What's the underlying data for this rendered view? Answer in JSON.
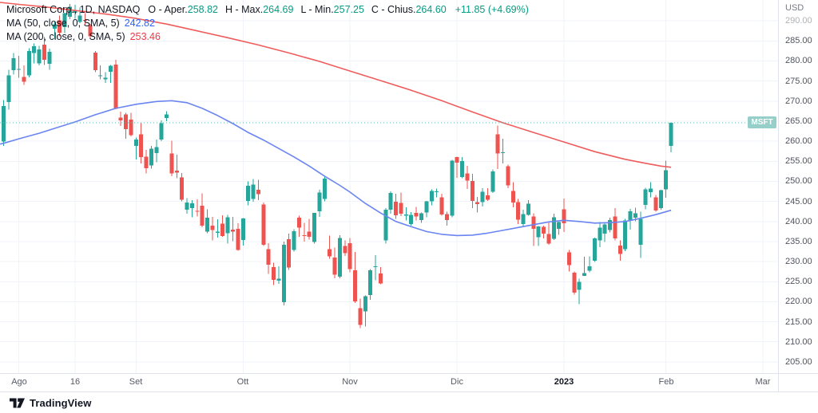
{
  "legend": {
    "title": "Microsoft Corp., 1D, NASDAQ",
    "ohlc": [
      {
        "label": "O - Aper.",
        "value": "258.82"
      },
      {
        "label": "H - Max.",
        "value": "264.69"
      },
      {
        "label": "L - Min.",
        "value": "257.25"
      },
      {
        "label": "C - Chius.",
        "value": "264.60"
      }
    ],
    "change": "+11.85 (+4.69%)",
    "ma50": {
      "label": "MA (50, close, 0, SMA, 5)",
      "value": "242.82"
    },
    "ma200": {
      "label": "MA (200, close, 0, SMA, 5)",
      "value": "253.46"
    }
  },
  "price_axis": {
    "currency": "USD"
  },
  "footer": {
    "brand": "TradingView"
  },
  "chart_data": {
    "type": "candlestick",
    "title": "Microsoft Corp. (MSFT) 1D candlestick chart with SMA 50 and SMA 200",
    "symbol_label": "MSFT",
    "xlim": [
      -0.7,
      152
    ],
    "ylim": [
      202.2,
      295.2
    ],
    "y_ticks": [
      290,
      285,
      280,
      275,
      270,
      265,
      260,
      255,
      250,
      245,
      240,
      235,
      230,
      225,
      220,
      215,
      210,
      205
    ],
    "x_ticks": [
      {
        "label": "Ago",
        "i": 3,
        "bold": false
      },
      {
        "label": "16",
        "i": 14,
        "bold": false
      },
      {
        "label": "Set",
        "i": 26,
        "bold": false
      },
      {
        "label": "Ott",
        "i": 47,
        "bold": false
      },
      {
        "label": "Nov",
        "i": 68,
        "bold": false
      },
      {
        "label": "Dic",
        "i": 89,
        "bold": false
      },
      {
        "label": "2023",
        "i": 110,
        "bold": true
      },
      {
        "label": "Feb",
        "i": 130,
        "bold": false
      },
      {
        "label": "Mar",
        "i": 149,
        "bold": false
      }
    ],
    "price_line": {
      "value": 264.6,
      "x_end": 934
    },
    "colors": {
      "up": "#26a69a",
      "down": "#ef5350",
      "ma50": "#6a85f1",
      "ma200": "#f05c5c",
      "grid": "#f0f3fa",
      "price_line": "#59b3aa",
      "badge_bg": "#96cfc9",
      "legend_up": "#089981",
      "legend_ma50": "#2962ff",
      "legend_ma200": "#f23645"
    },
    "candles": [
      [
        259.9,
        270.3,
        258.8,
        268.74
      ],
      [
        269.75,
        277.84,
        267.87,
        276.41
      ],
      [
        277.7,
        282.0,
        276.63,
        280.74
      ],
      [
        277.82,
        281.3,
        275.84,
        278.01
      ],
      [
        276.0,
        278.86,
        274.0,
        274.82
      ],
      [
        276.4,
        283.13,
        275.93,
        282.47
      ],
      [
        282.0,
        284.35,
        279.38,
        283.65
      ],
      [
        279.43,
        283.79,
        278.91,
        282.91
      ],
      [
        284.04,
        285.92,
        279.0,
        280.32
      ],
      [
        279.3,
        283.08,
        277.85,
        282.3
      ],
      [
        288.09,
        289.81,
        285.42,
        289.16
      ],
      [
        290.17,
        291.33,
        286.11,
        287.02
      ],
      [
        288.48,
        292.03,
        286.94,
        291.91
      ],
      [
        291.0,
        294.18,
        290.42,
        293.47
      ],
      [
        291.99,
        294.04,
        290.52,
        292.71
      ],
      [
        289.74,
        293.35,
        289.47,
        291.32
      ],
      [
        290.19,
        291.91,
        289.08,
        290.17
      ],
      [
        288.9,
        289.25,
        285.56,
        286.15
      ],
      [
        282.08,
        282.46,
        277.22,
        277.75
      ],
      [
        276.44,
        278.86,
        275.4,
        276.44
      ],
      [
        275.41,
        277.23,
        274.52,
        275.79
      ],
      [
        277.33,
        279.02,
        274.52,
        278.85
      ],
      [
        279.08,
        280.34,
        267.98,
        268.09
      ],
      [
        265.85,
        267.4,
        263.85,
        265.23
      ],
      [
        266.67,
        267.05,
        260.66,
        262.97
      ],
      [
        265.39,
        267.11,
        261.21,
        261.47
      ],
      [
        258.87,
        260.89,
        255.41,
        260.4
      ],
      [
        261.7,
        264.74,
        254.47,
        256.06
      ],
      [
        256.2,
        257.83,
        251.94,
        253.25
      ],
      [
        254.0,
        258.82,
        253.21,
        258.09
      ],
      [
        257.05,
        260.43,
        254.79,
        258.52
      ],
      [
        260.38,
        265.23,
        260.02,
        264.46
      ],
      [
        265.79,
        267.45,
        265.01,
        266.65
      ],
      [
        256.91,
        260.16,
        251.29,
        251.99
      ],
      [
        252.64,
        256.65,
        250.82,
        252.22
      ],
      [
        251.0,
        252.06,
        244.98,
        245.38
      ],
      [
        242.89,
        245.78,
        241.97,
        244.74
      ],
      [
        243.3,
        245.36,
        241.06,
        244.52
      ],
      [
        242.61,
        245.54,
        241.27,
        242.45
      ],
      [
        243.9,
        246.98,
        238.57,
        238.95
      ],
      [
        237.5,
        243.07,
        237.04,
        240.98
      ],
      [
        239.01,
        241.13,
        235.31,
        237.92
      ],
      [
        237.2,
        240.53,
        235.96,
        237.45
      ],
      [
        239.41,
        241.55,
        236.17,
        236.41
      ],
      [
        237.03,
        241.62,
        234.48,
        241.07
      ],
      [
        238.0,
        241.13,
        235.13,
        237.5
      ],
      [
        238.21,
        239.58,
        232.73,
        232.9
      ],
      [
        235.41,
        240.88,
        234.02,
        240.74
      ],
      [
        245.1,
        250.0,
        244.04,
        248.88
      ],
      [
        245.64,
        250.6,
        244.92,
        249.2
      ],
      [
        247.9,
        250.34,
        245.31,
        246.79
      ],
      [
        244.21,
        244.69,
        233.94,
        234.24
      ],
      [
        233.06,
        234.56,
        226.99,
        229.25
      ],
      [
        228.63,
        229.75,
        224.11,
        225.41
      ],
      [
        225.23,
        228.87,
        224.42,
        225.75
      ],
      [
        219.85,
        235.03,
        219.13,
        234.24
      ],
      [
        235.6,
        237.0,
        227.97,
        228.56
      ],
      [
        232.9,
        238.04,
        232.51,
        237.53
      ],
      [
        240.99,
        241.49,
        236.16,
        238.5
      ],
      [
        236.6,
        239.66,
        235.0,
        236.48
      ],
      [
        237.47,
        240.63,
        235.52,
        236.15
      ],
      [
        234.9,
        242.19,
        234.45,
        242.12
      ],
      [
        242.5,
        247.9,
        241.19,
        247.25
      ],
      [
        245.63,
        251.04,
        244.98,
        250.66
      ],
      [
        233.11,
        236.5,
        230.69,
        231.32
      ],
      [
        231.04,
        233.53,
        225.81,
        226.75
      ],
      [
        226.24,
        236.6,
        225.89,
        235.87
      ],
      [
        233.9,
        235.26,
        231.38,
        232.13
      ],
      [
        234.6,
        235.88,
        227.33,
        228.17
      ],
      [
        227.8,
        232.43,
        219.67,
        220.1
      ],
      [
        218.42,
        220.81,
        213.43,
        214.25
      ],
      [
        217.55,
        221.59,
        213.8,
        221.39
      ],
      [
        221.64,
        228.18,
        220.52,
        227.87
      ],
      [
        228.6,
        231.59,
        225.32,
        228.87
      ],
      [
        227.0,
        228.66,
        224.33,
        224.51
      ],
      [
        235.31,
        243.32,
        234.51,
        242.98
      ],
      [
        242.9,
        247.53,
        241.92,
        247.11
      ],
      [
        244.96,
        246.88,
        240.65,
        241.55
      ],
      [
        244.61,
        247.19,
        241.3,
        241.97
      ],
      [
        241.5,
        243.53,
        240.26,
        241.73
      ],
      [
        239.34,
        242.3,
        238.93,
        241.68
      ],
      [
        242.1,
        243.59,
        240.21,
        241.22
      ],
      [
        240.37,
        242.23,
        239.61,
        242.05
      ],
      [
        242.27,
        245.16,
        241.08,
        245.03
      ],
      [
        245.04,
        248.03,
        244.04,
        247.58
      ],
      [
        247.45,
        248.19,
        246.06,
        247.49
      ],
      [
        246.0,
        246.93,
        241.4,
        241.76
      ],
      [
        241.8,
        242.42,
        238.92,
        240.33
      ],
      [
        241.42,
        255.33,
        241.01,
        255.14
      ],
      [
        256.1,
        256.12,
        250.92,
        254.69
      ],
      [
        251.11,
        256.06,
        250.76,
        255.02
      ],
      [
        252.01,
        253.82,
        248.06,
        250.2
      ],
      [
        250.08,
        251.86,
        243.37,
        245.12
      ],
      [
        244.83,
        246.16,
        242.21,
        244.37
      ],
      [
        244.83,
        248.31,
        243.75,
        247.4
      ],
      [
        246.55,
        248.31,
        245.16,
        245.42
      ],
      [
        247.44,
        252.94,
        247.13,
        252.51
      ],
      [
        261.69,
        263.92,
        253.07,
        256.92
      ],
      [
        257.13,
        260.62,
        254.46,
        257.22
      ],
      [
        253.72,
        254.2,
        248.31,
        249.01
      ],
      [
        247.61,
        249.84,
        243.51,
        244.69
      ],
      [
        244.86,
        245.61,
        239.37,
        240.45
      ],
      [
        239.4,
        242.9,
        238.75,
        241.8
      ],
      [
        241.69,
        245.31,
        241.41,
        244.43
      ],
      [
        241.26,
        242.08,
        233.87,
        238.19
      ],
      [
        236.11,
        238.87,
        233.94,
        238.73
      ],
      [
        238.7,
        238.93,
        235.83,
        236.96
      ],
      [
        236.89,
        239.72,
        234.17,
        234.53
      ],
      [
        235.65,
        241.92,
        235.35,
        241.01
      ],
      [
        238.21,
        239.96,
        236.66,
        239.82
      ],
      [
        243.08,
        245.75,
        237.4,
        239.58
      ],
      [
        232.28,
        232.87,
        227.54,
        229.1
      ],
      [
        227.2,
        227.55,
        221.76,
        222.31
      ],
      [
        223.0,
        225.76,
        219.35,
        224.93
      ],
      [
        226.45,
        231.24,
        226.41,
        227.12
      ],
      [
        227.76,
        231.31,
        227.33,
        228.85
      ],
      [
        230.26,
        235.95,
        229.92,
        235.77
      ],
      [
        235.26,
        239.9,
        233.56,
        238.51
      ],
      [
        237.0,
        239.41,
        234.92,
        239.23
      ],
      [
        237.9,
        240.99,
        237.29,
        240.35
      ],
      [
        241.23,
        243.31,
        235.33,
        235.81
      ],
      [
        234.0,
        235.33,
        230.21,
        231.93
      ],
      [
        233.06,
        240.62,
        232.57,
        240.22
      ],
      [
        240.2,
        243.09,
        238.0,
        242.58
      ],
      [
        240.9,
        243.45,
        240.01,
        242.04
      ],
      [
        234.19,
        242.43,
        230.9,
        240.61
      ],
      [
        244.1,
        248.41,
        243.01,
        248.0
      ],
      [
        247.33,
        249.83,
        246.03,
        248.16
      ],
      [
        246.0,
        246.62,
        242.4,
        242.71
      ],
      [
        243.3,
        247.9,
        242.91,
        247.81
      ],
      [
        248.0,
        255.18,
        245.9,
        252.75
      ],
      [
        258.82,
        264.69,
        257.25,
        264.6
      ]
    ],
    "ma50": {
      "name": "MA 50",
      "points": [
        [
          -0.7,
          259.3
        ],
        [
          0,
          259.5
        ],
        [
          3,
          260.6
        ],
        [
          7,
          262.0
        ],
        [
          11,
          263.6
        ],
        [
          14,
          264.8
        ],
        [
          18,
          266.6
        ],
        [
          22,
          268.2
        ],
        [
          26,
          269.2
        ],
        [
          30,
          269.9
        ],
        [
          33,
          270.1
        ],
        [
          36,
          269.6
        ],
        [
          39,
          268.2
        ],
        [
          42,
          266.4
        ],
        [
          45,
          264.4
        ],
        [
          48,
          262.2
        ],
        [
          51,
          260.3
        ],
        [
          54,
          258.2
        ],
        [
          57,
          256.1
        ],
        [
          60,
          253.8
        ],
        [
          63,
          251.3
        ],
        [
          66,
          249.0
        ],
        [
          68,
          247.3
        ],
        [
          71,
          244.5
        ],
        [
          74,
          242.1
        ],
        [
          77,
          240.0
        ],
        [
          80,
          238.7
        ],
        [
          83,
          237.5
        ],
        [
          86,
          236.8
        ],
        [
          89,
          236.5
        ],
        [
          92,
          236.6
        ],
        [
          95,
          237.1
        ],
        [
          98,
          237.8
        ],
        [
          101,
          238.5
        ],
        [
          104,
          239.2
        ],
        [
          107,
          239.9
        ],
        [
          110,
          240.3
        ],
        [
          113,
          240.0
        ],
        [
          116,
          239.6
        ],
        [
          119,
          239.7
        ],
        [
          122,
          240.0
        ],
        [
          125,
          240.8
        ],
        [
          128,
          241.7
        ],
        [
          131,
          242.8
        ]
      ]
    },
    "ma200": {
      "name": "MA 200",
      "points": [
        [
          -0.7,
          294.6
        ],
        [
          3,
          294.1
        ],
        [
          8,
          293.5
        ],
        [
          14,
          292.6
        ],
        [
          20,
          291.7
        ],
        [
          26,
          290.6
        ],
        [
          32,
          289.2
        ],
        [
          38,
          287.5
        ],
        [
          44,
          285.8
        ],
        [
          50,
          284.0
        ],
        [
          56,
          282.0
        ],
        [
          62,
          279.9
        ],
        [
          68,
          277.5
        ],
        [
          74,
          275.1
        ],
        [
          80,
          272.7
        ],
        [
          86,
          270.1
        ],
        [
          92,
          267.3
        ],
        [
          98,
          264.6
        ],
        [
          104,
          262.2
        ],
        [
          110,
          259.8
        ],
        [
          116,
          257.4
        ],
        [
          122,
          255.5
        ],
        [
          126,
          254.5
        ],
        [
          129,
          253.8
        ],
        [
          131,
          253.5
        ]
      ]
    }
  }
}
